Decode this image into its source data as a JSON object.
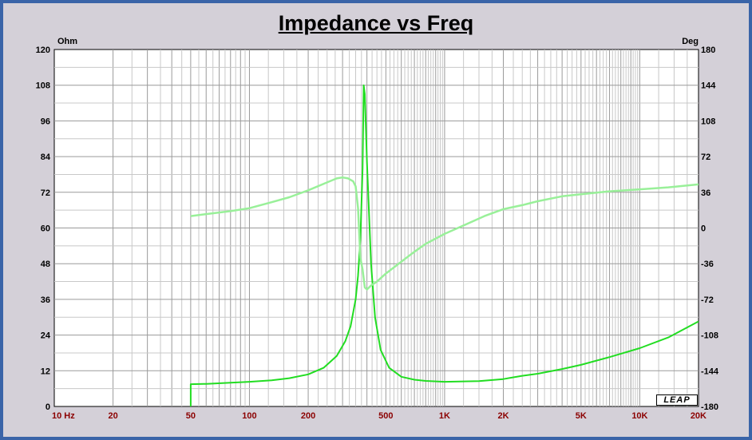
{
  "chart_data": {
    "type": "line",
    "title": "Impedance vs Freq",
    "x_scale": "log",
    "xlim": [
      10,
      20000
    ],
    "ylim_left": [
      0,
      120
    ],
    "ylim_right": [
      -180,
      180
    ],
    "left_unit": "Ohm",
    "right_unit": "Deg",
    "x_ticks": [
      {
        "value": 10,
        "label": "10  Hz"
      },
      {
        "value": 20,
        "label": "20"
      },
      {
        "value": 50,
        "label": "50"
      },
      {
        "value": 100,
        "label": "100"
      },
      {
        "value": 200,
        "label": "200"
      },
      {
        "value": 500,
        "label": "500"
      },
      {
        "value": 1000,
        "label": "1K"
      },
      {
        "value": 2000,
        "label": "2K"
      },
      {
        "value": 5000,
        "label": "5K"
      },
      {
        "value": 10000,
        "label": "10K"
      },
      {
        "value": 20000,
        "label": "20K"
      }
    ],
    "y_ticks_left": [
      "0",
      "12",
      "24",
      "36",
      "48",
      "60",
      "72",
      "84",
      "96",
      "108",
      "120"
    ],
    "y_ticks_right": [
      "-180",
      "-144",
      "-108",
      "-72",
      "-36",
      "0",
      "36",
      "72",
      "108",
      "144",
      "180"
    ],
    "grid": true,
    "series": [
      {
        "axis": "left",
        "color": "#22dd22",
        "x": [
          50,
          50,
          60,
          80,
          100,
          130,
          160,
          200,
          240,
          280,
          310,
          330,
          350,
          360,
          370,
          380,
          385,
          390,
          400,
          420,
          440,
          470,
          520,
          600,
          700,
          800,
          1000,
          1500,
          2000,
          2500,
          3000,
          4000,
          5000,
          7000,
          10000,
          14000,
          20000
        ],
        "y": [
          0,
          7.5,
          7.6,
          8,
          8.3,
          8.8,
          9.5,
          10.8,
          13,
          17,
          22,
          27,
          36,
          44,
          56,
          80,
          108,
          105,
          82,
          48,
          30,
          19,
          13,
          10,
          9,
          8.6,
          8.3,
          8.5,
          9.2,
          10.3,
          11,
          12.6,
          14,
          16.6,
          19.6,
          23.2,
          28.6
        ]
      },
      {
        "axis": "right",
        "color": "#99f099",
        "x": [
          50,
          60,
          80,
          100,
          130,
          160,
          200,
          250,
          280,
          300,
          320,
          340,
          350,
          360,
          370,
          380,
          390,
          400,
          420,
          450,
          500,
          600,
          700,
          800,
          1000,
          1300,
          1600,
          2000,
          2500,
          3000,
          4000,
          5000,
          7000,
          10000,
          14000,
          20000
        ],
        "y": [
          12,
          14,
          17,
          20,
          26,
          31,
          38,
          46,
          50,
          51,
          50,
          47,
          42,
          20,
          -30,
          -42,
          -60,
          -62,
          -58,
          -54,
          -46,
          -34,
          -24,
          -16,
          -6,
          4,
          12,
          19,
          23,
          27,
          32,
          34,
          37,
          39,
          41,
          44
        ]
      }
    ],
    "logo": "LEAP"
  }
}
